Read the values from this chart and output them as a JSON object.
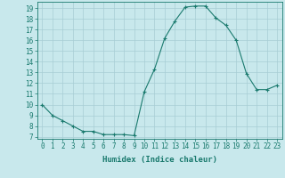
{
  "x": [
    0,
    1,
    2,
    3,
    4,
    5,
    6,
    7,
    8,
    9,
    10,
    11,
    12,
    13,
    14,
    15,
    16,
    17,
    18,
    19,
    20,
    21,
    22,
    23
  ],
  "y": [
    10,
    9,
    8.5,
    8,
    7.5,
    7.5,
    7.2,
    7.2,
    7.2,
    7.1,
    11.2,
    13.3,
    16.2,
    17.8,
    19.1,
    19.2,
    19.2,
    18.1,
    17.4,
    16.0,
    12.9,
    11.4,
    11.4,
    11.8
  ],
  "line_color": "#1a7a6e",
  "marker": "+",
  "marker_size": 3,
  "marker_lw": 0.8,
  "bg_color": "#c8e8ec",
  "grid_color": "#a8cdd4",
  "xlabel": "Humidex (Indice chaleur)",
  "xlim": [
    -0.5,
    23.5
  ],
  "ylim": [
    6.8,
    19.6
  ],
  "yticks": [
    7,
    8,
    9,
    10,
    11,
    12,
    13,
    14,
    15,
    16,
    17,
    18,
    19
  ],
  "xticks": [
    0,
    1,
    2,
    3,
    4,
    5,
    6,
    7,
    8,
    9,
    10,
    11,
    12,
    13,
    14,
    15,
    16,
    17,
    18,
    19,
    20,
    21,
    22,
    23
  ],
  "xtick_labels": [
    "0",
    "1",
    "2",
    "3",
    "4",
    "5",
    "6",
    "7",
    "8",
    "9",
    "10",
    "11",
    "12",
    "13",
    "14",
    "15",
    "16",
    "17",
    "18",
    "19",
    "20",
    "21",
    "22",
    "23"
  ],
  "axis_color": "#1a7a6e",
  "tick_color": "#1a7a6e",
  "label_color": "#1a7a6e",
  "tick_fontsize": 5.5,
  "xlabel_fontsize": 6.5,
  "linewidth": 0.8
}
